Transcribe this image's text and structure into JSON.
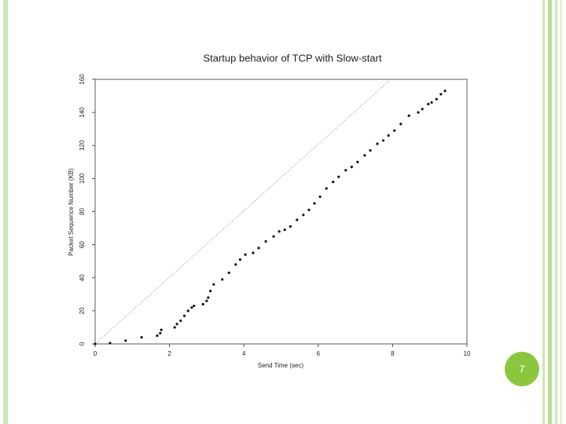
{
  "slide": {
    "page_number": "7"
  },
  "chart_data": {
    "type": "scatter",
    "title": "Startup behavior of TCP with Slow-start",
    "x_label": "Send Time (sec)",
    "y_label": "Packet Sequence Number (KB)",
    "xlim": [
      0,
      10
    ],
    "xticks": [
      0,
      2,
      4,
      6,
      8,
      10
    ],
    "ylim": [
      0,
      160
    ],
    "yticks": [
      0,
      20,
      40,
      60,
      80,
      100,
      120,
      140,
      160
    ],
    "color": "#111111",
    "reference_line": {
      "x": [
        0,
        7.95
      ],
      "y": [
        0,
        160
      ],
      "color": "#777777"
    },
    "x": [
      0,
      0.4,
      0.82,
      1.25,
      1.67,
      1.75,
      1.78,
      2.14,
      2.2,
      2.3,
      2.4,
      2.5,
      2.6,
      2.66,
      2.9,
      3.0,
      3.04,
      3.1,
      3.19,
      3.42,
      3.6,
      3.78,
      3.9,
      4.04,
      4.25,
      4.4,
      4.59,
      4.8,
      4.95,
      5.1,
      5.25,
      5.43,
      5.6,
      5.75,
      5.9,
      6.05,
      6.22,
      6.4,
      6.55,
      6.74,
      6.9,
      7.06,
      7.25,
      7.4,
      7.59,
      7.75,
      7.89,
      8.05,
      8.22,
      8.44,
      8.69,
      8.8,
      8.96,
      9.05,
      9.18,
      9.3,
      9.41
    ],
    "values": [
      0,
      0.5,
      2,
      4,
      5,
      6.5,
      8.5,
      10,
      12,
      14,
      17,
      20,
      22,
      23,
      24,
      26,
      28,
      32,
      36,
      39,
      43,
      48,
      51,
      54,
      55,
      58,
      62,
      65,
      68,
      69,
      71,
      75,
      78,
      81,
      85,
      89,
      94,
      98,
      101,
      105,
      107,
      110,
      114,
      117,
      121,
      123,
      126,
      129,
      133,
      138,
      140,
      142,
      145,
      146,
      148,
      151,
      153
    ]
  }
}
